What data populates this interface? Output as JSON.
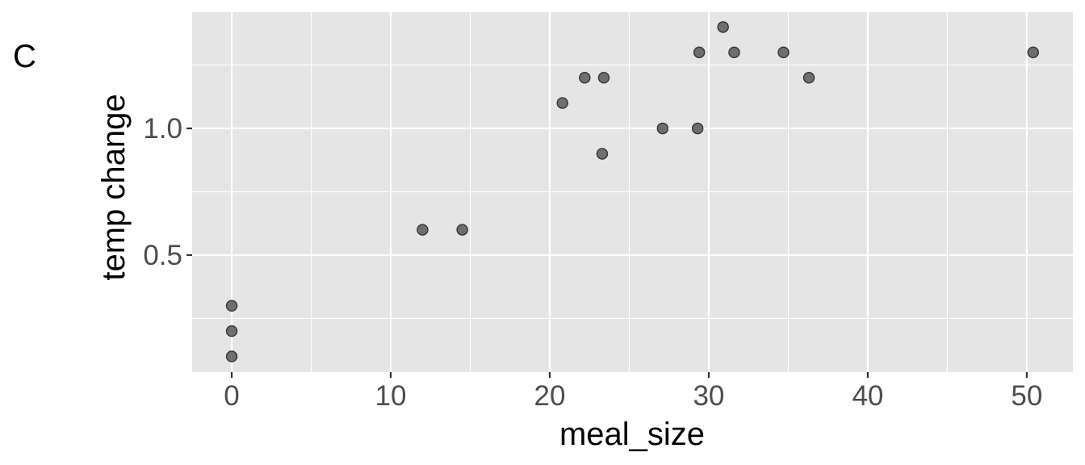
{
  "panel_label": "C",
  "chart_data": {
    "type": "scatter",
    "title": "",
    "xlabel": "meal_size",
    "ylabel": "temp change",
    "xlim": [
      -2.49,
      52.9
    ],
    "ylim": [
      0.038,
      1.459
    ],
    "x_ticks": [
      0,
      10,
      20,
      30,
      40,
      50
    ],
    "x_tick_labels": [
      "0",
      "10",
      "20",
      "30",
      "40",
      "50"
    ],
    "x_minor_ticks": [
      5,
      15,
      25,
      35,
      45
    ],
    "y_ticks": [
      0.5,
      1.0
    ],
    "y_tick_labels": [
      "0.5",
      "1.0"
    ],
    "y_minor_ticks": [
      0.25,
      0.75,
      1.25
    ],
    "grid": true,
    "legend": null,
    "colors": {
      "panel_bg": "#e5e5e5",
      "grid": "#ffffff",
      "point_fill": "#6e6e6e",
      "point_stroke": "#3a3a3a",
      "tick_text": "#4d4d4d",
      "axis_title": "#000000"
    },
    "points": [
      {
        "x": 0,
        "y": 0.1
      },
      {
        "x": 0,
        "y": 0.2
      },
      {
        "x": 0,
        "y": 0.3
      },
      {
        "x": 12.0,
        "y": 0.6
      },
      {
        "x": 14.5,
        "y": 0.6
      },
      {
        "x": 20.8,
        "y": 1.1
      },
      {
        "x": 22.2,
        "y": 1.2
      },
      {
        "x": 23.4,
        "y": 1.2
      },
      {
        "x": 23.3,
        "y": 0.9
      },
      {
        "x": 27.1,
        "y": 1.0
      },
      {
        "x": 29.3,
        "y": 1.0
      },
      {
        "x": 29.4,
        "y": 1.3
      },
      {
        "x": 30.9,
        "y": 1.4
      },
      {
        "x": 31.6,
        "y": 1.3
      },
      {
        "x": 34.7,
        "y": 1.3
      },
      {
        "x": 36.3,
        "y": 1.2
      },
      {
        "x": 50.4,
        "y": 1.3
      }
    ]
  }
}
